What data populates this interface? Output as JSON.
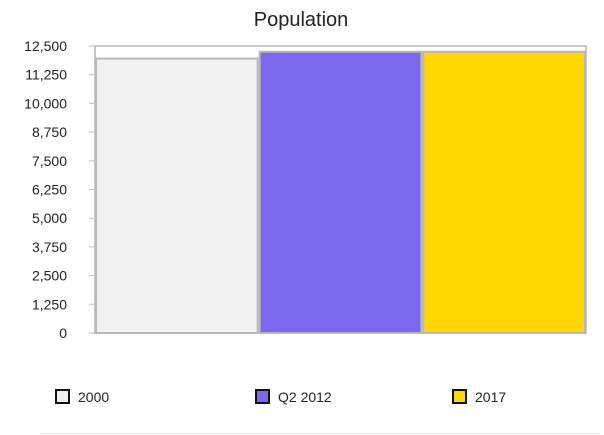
{
  "chart_data": {
    "type": "bar",
    "title": "Population",
    "xlabel": "",
    "ylabel": "",
    "ylim": [
      0,
      12500
    ],
    "yticks": [
      "0",
      "1,250",
      "2,500",
      "3,750",
      "5,000",
      "6,250",
      "7,500",
      "8,750",
      "10,000",
      "11,250",
      "12,500"
    ],
    "ytick_values": [
      0,
      1250,
      2500,
      3750,
      5000,
      6250,
      7500,
      8750,
      10000,
      11250,
      12500
    ],
    "categories": [
      "2000",
      "Q2 2012",
      "2017"
    ],
    "values": [
      11950,
      12250,
      12250
    ],
    "colors": [
      "#f2f2f2",
      "#7b68ee",
      "#ffd700"
    ],
    "legend_position": "bottom",
    "grid": false
  }
}
